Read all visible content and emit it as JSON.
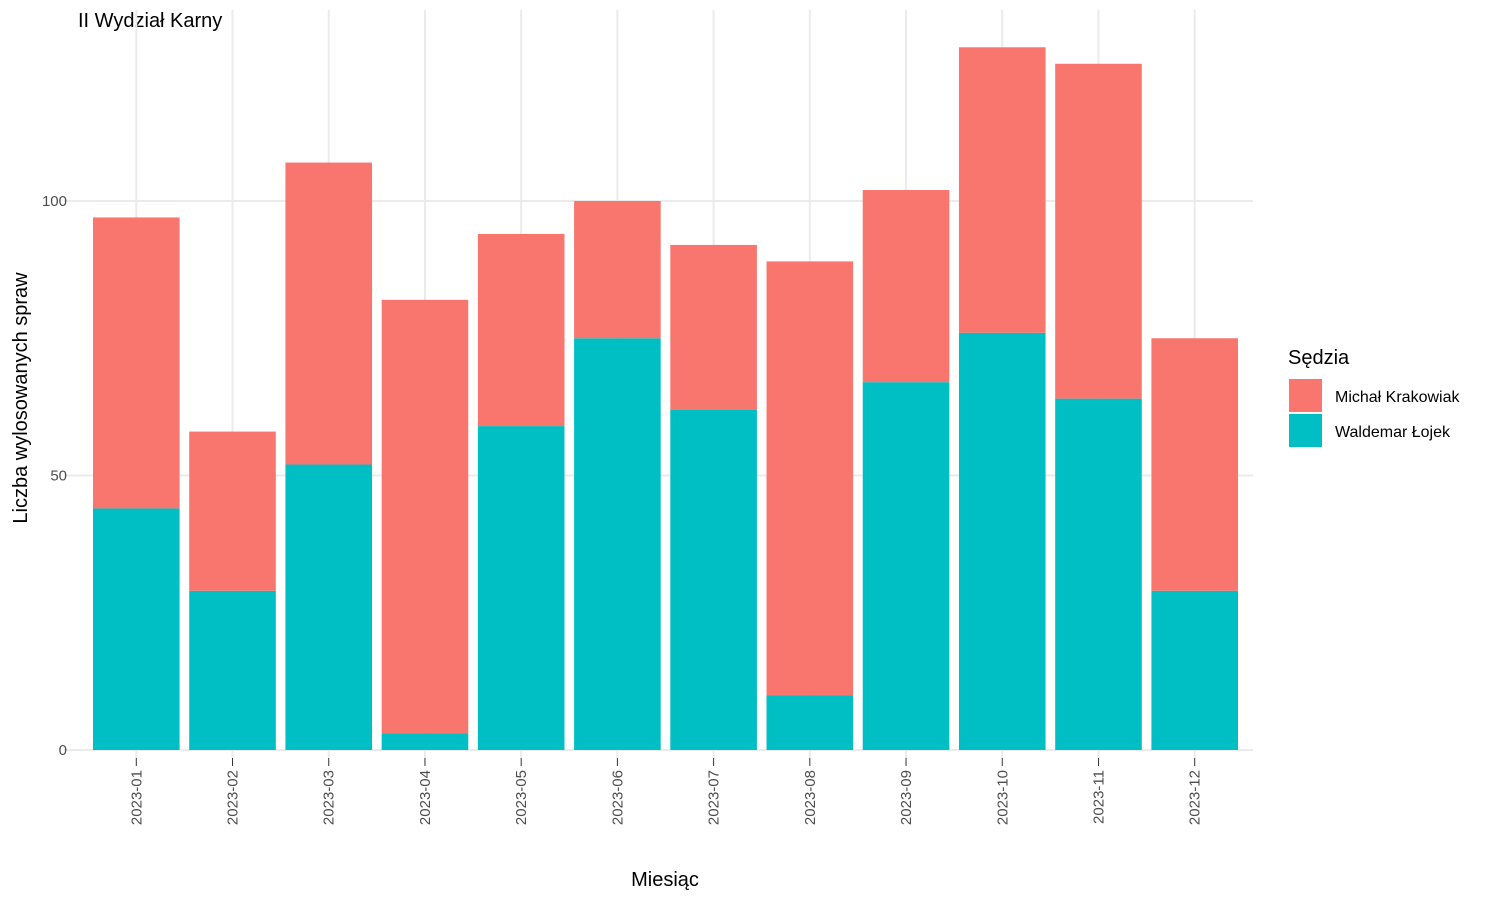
{
  "chart_data": {
    "type": "bar",
    "stacked": true,
    "title": "II Wydział Karny",
    "xlabel": "Miesiąc",
    "ylabel": "Liczba wylosowanych spraw",
    "categories": [
      "2023-01",
      "2023-02",
      "2023-03",
      "2023-04",
      "2023-05",
      "2023-06",
      "2023-07",
      "2023-08",
      "2023-09",
      "2023-10",
      "2023-11",
      "2023-12"
    ],
    "series": [
      {
        "name": "Waldemar Łojek",
        "color": "#00BFC4",
        "values": [
          44,
          29,
          52,
          3,
          59,
          75,
          62,
          10,
          67,
          76,
          64,
          29
        ]
      },
      {
        "name": "Michał Krakowiak",
        "color": "#F8766D",
        "values": [
          53,
          29,
          55,
          79,
          35,
          25,
          30,
          79,
          35,
          52,
          61,
          46
        ]
      }
    ],
    "ylim": [
      0,
      130
    ],
    "yticks": [
      0,
      50,
      100
    ],
    "grid": true,
    "legend": {
      "title": "Sędzia",
      "position": "right",
      "entries": [
        "Michał Krakowiak",
        "Waldemar Łojek"
      ]
    }
  }
}
